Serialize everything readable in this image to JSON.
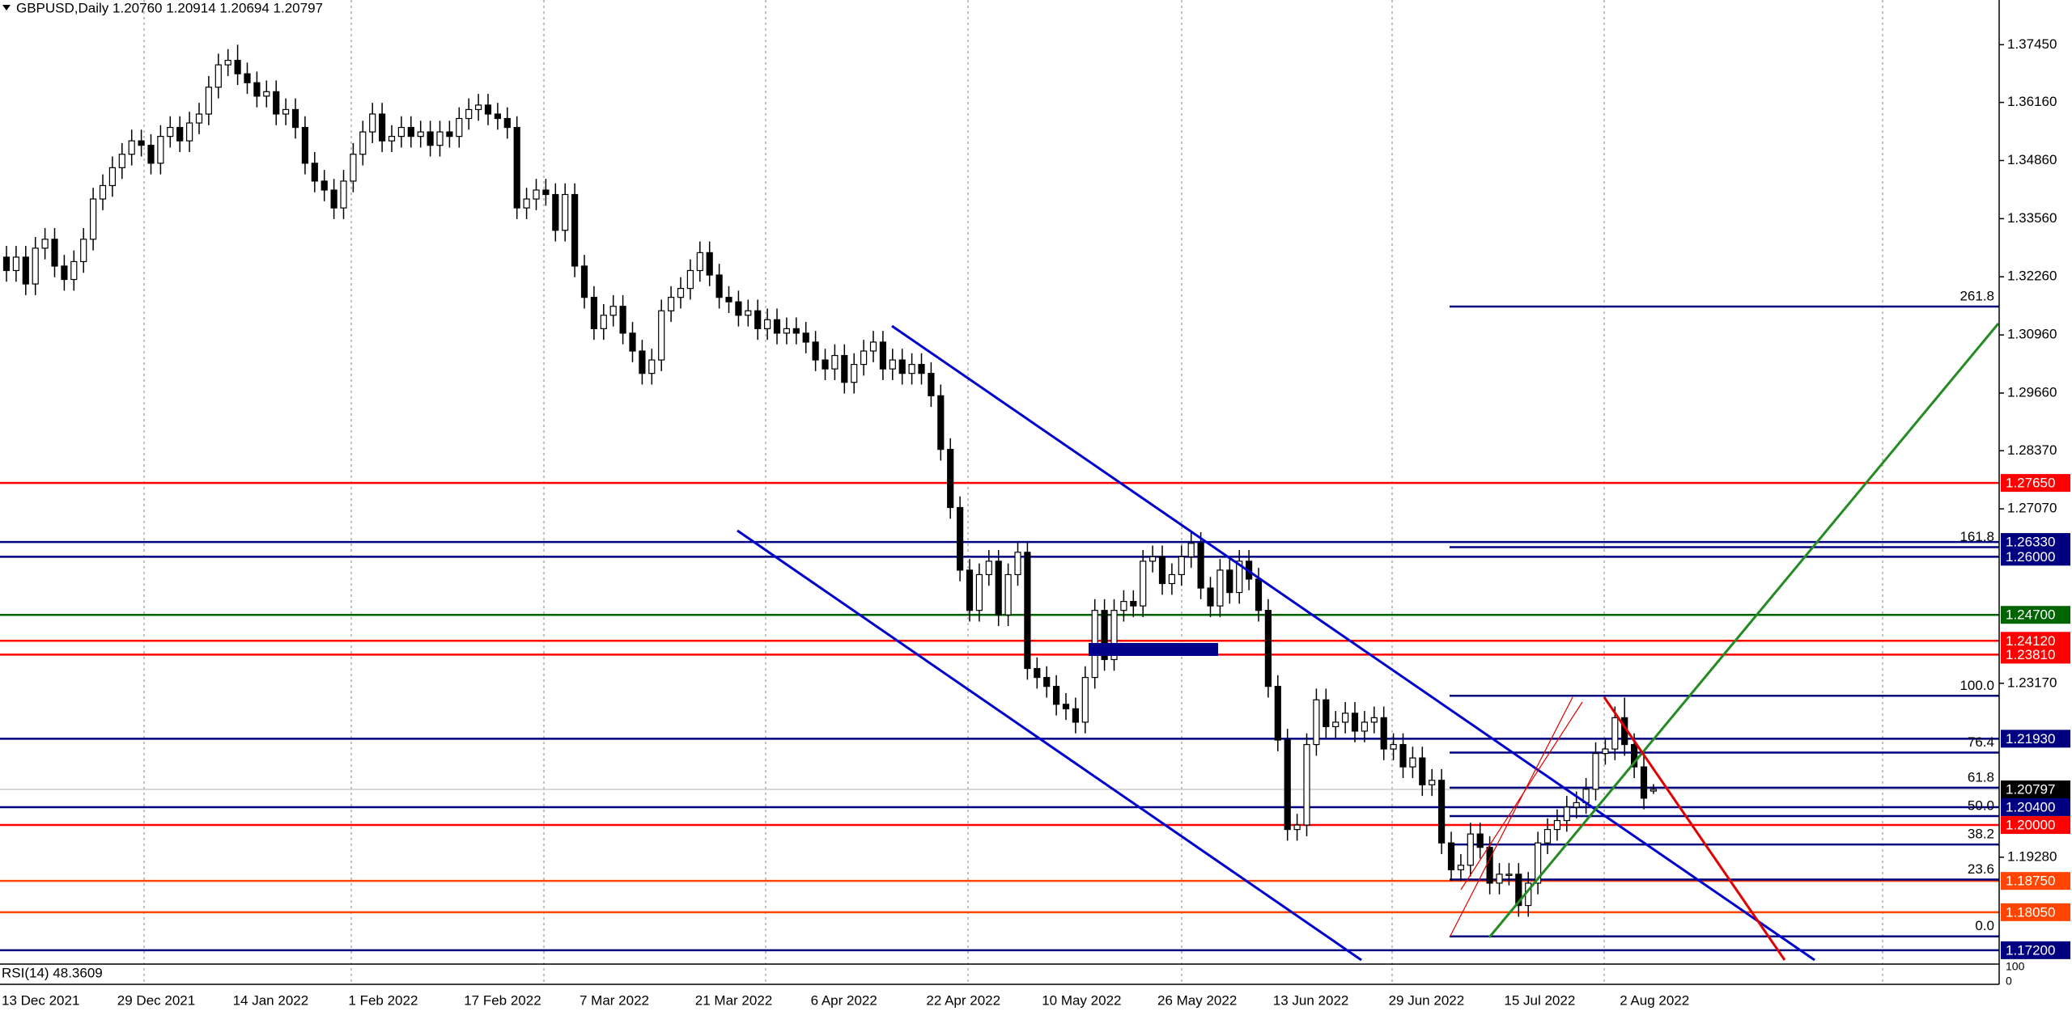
{
  "chart_data": {
    "type": "candlestick",
    "title": "GBPUSD,Daily  1.20760 1.20914 1.20694 1.20797",
    "categories": [
      "13 Dec 2021",
      null,
      null,
      null,
      null,
      null,
      null,
      null,
      null,
      null,
      null,
      null,
      "29 Dec 2021",
      null,
      null,
      null,
      null,
      null,
      null,
      null,
      null,
      null,
      null,
      null,
      "14 Jan 2022",
      null,
      null,
      null,
      null,
      null,
      null,
      null,
      null,
      null,
      null,
      null,
      "1 Feb 2022",
      null,
      null,
      null,
      null,
      null,
      null,
      null,
      null,
      null,
      null,
      null,
      "17 Feb 2022",
      null,
      null,
      null,
      null,
      null,
      null,
      null,
      null,
      null,
      null,
      null,
      "7 Mar 2022",
      null,
      null,
      null,
      null,
      null,
      null,
      null,
      null,
      null,
      null,
      null,
      "21 Mar 2022",
      null,
      null,
      null,
      null,
      null,
      null,
      null,
      null,
      null,
      null,
      null,
      "6 Apr 2022",
      null,
      null,
      null,
      null,
      null,
      null,
      null,
      null,
      null,
      null,
      null,
      "22 Apr 2022",
      null,
      null,
      null,
      null,
      null,
      null,
      null,
      null,
      null,
      null,
      null,
      "10 May 2022",
      null,
      null,
      null,
      null,
      null,
      null,
      null,
      null,
      null,
      null,
      null,
      "26 May 2022",
      null,
      null,
      null,
      null,
      null,
      null,
      null,
      null,
      null,
      null,
      null,
      "13 Jun 2022",
      null,
      null,
      null,
      null,
      null,
      null,
      null,
      null,
      null,
      null,
      null,
      "29 Jun 2022",
      null,
      null,
      null,
      null,
      null,
      null,
      null,
      null,
      null,
      null,
      null,
      "15 Jul 2022",
      null,
      null,
      null,
      null,
      null,
      null,
      null,
      null,
      null,
      null,
      null,
      "2 Aug 2022",
      null,
      null,
      null
    ],
    "open": [
      1.327,
      1.324,
      1.327,
      1.321,
      1.329,
      1.331,
      1.325,
      1.322,
      1.326,
      1.331,
      1.34,
      1.343,
      1.347,
      1.35,
      1.353,
      1.352,
      1.348,
      1.354,
      1.356,
      1.353,
      1.357,
      1.359,
      1.365,
      1.37,
      1.371,
      1.368,
      1.366,
      1.363,
      1.364,
      1.359,
      1.36,
      1.356,
      1.348,
      1.344,
      1.342,
      1.338,
      1.344,
      1.35,
      1.355,
      1.359,
      1.353,
      1.354,
      1.356,
      1.354,
      1.355,
      1.352,
      1.355,
      1.354,
      1.358,
      1.36,
      1.361,
      1.359,
      1.358,
      1.356,
      1.338,
      1.34,
      1.342,
      1.341,
      1.333,
      1.341,
      1.325,
      1.318,
      1.311,
      1.314,
      1.316,
      1.31,
      1.306,
      1.301,
      1.304,
      1.315,
      1.318,
      1.32,
      1.324,
      1.328,
      1.323,
      1.318,
      1.317,
      1.314,
      1.315,
      1.311,
      1.313,
      1.31,
      1.311,
      1.31,
      1.308,
      1.304,
      1.302,
      1.305,
      1.299,
      1.303,
      1.306,
      1.308,
      1.302,
      1.304,
      1.301,
      1.303,
      1.301,
      1.296,
      1.284,
      1.271,
      1.257,
      1.248,
      1.256,
      1.259,
      1.247,
      1.256,
      1.261,
      1.235,
      1.233,
      1.231,
      1.227,
      1.226,
      1.223,
      1.233,
      1.248,
      1.237,
      1.248,
      1.25,
      1.249,
      1.259,
      1.26,
      1.254,
      1.256,
      1.26,
      1.263,
      1.253,
      1.249,
      1.257,
      1.252,
      1.259,
      1.255,
      1.248,
      1.231,
      1.219,
      1.199,
      1.2,
      1.218,
      1.228,
      1.222,
      1.223,
      1.225,
      1.221,
      1.223,
      1.224,
      1.217,
      1.218,
      1.213,
      1.215,
      1.209,
      1.21,
      1.196,
      1.19,
      1.191,
      1.198,
      1.195,
      1.187,
      1.189,
      1.189,
      1.182,
      1.187,
      1.196,
      1.199,
      1.201,
      1.204,
      1.205,
      1.208,
      1.216,
      1.217,
      1.224,
      1.218,
      1.213,
      1.2076
    ],
    "high": [
      1.3295,
      1.3295,
      1.3295,
      1.3315,
      1.3335,
      1.3335,
      1.3275,
      1.3285,
      1.3335,
      1.3425,
      1.3455,
      1.3495,
      1.3525,
      1.3555,
      1.3555,
      1.3545,
      1.3565,
      1.3585,
      1.3585,
      1.3595,
      1.3615,
      1.3675,
      1.3725,
      1.3735,
      1.3745,
      1.3705,
      1.3685,
      1.3665,
      1.3665,
      1.3625,
      1.3625,
      1.3585,
      1.3505,
      1.3465,
      1.3445,
      1.3465,
      1.3525,
      1.3575,
      1.3615,
      1.3615,
      1.3565,
      1.3585,
      1.3585,
      1.3575,
      1.3575,
      1.3575,
      1.3575,
      1.3605,
      1.3625,
      1.3635,
      1.3635,
      1.3615,
      1.3605,
      1.3585,
      1.3425,
      1.3445,
      1.3445,
      1.3435,
      1.3435,
      1.3435,
      1.3275,
      1.3205,
      1.3165,
      1.3185,
      1.3185,
      1.3125,
      1.3085,
      1.3065,
      1.3175,
      1.3205,
      1.3225,
      1.3265,
      1.3305,
      1.3305,
      1.3255,
      1.3205,
      1.3195,
      1.3175,
      1.3175,
      1.3155,
      1.3155,
      1.3135,
      1.3135,
      1.3125,
      1.3105,
      1.3065,
      1.3075,
      1.3075,
      1.3055,
      1.3085,
      1.3105,
      1.3105,
      1.3065,
      1.3065,
      1.3055,
      1.3055,
      1.3035,
      1.2985,
      1.2865,
      1.2735,
      1.2595,
      1.2585,
      1.2615,
      1.2615,
      1.2585,
      1.2635,
      1.2635,
      1.2375,
      1.2355,
      1.2335,
      1.2295,
      1.2285,
      1.2355,
      1.2505,
      1.2505,
      1.2505,
      1.2525,
      1.2525,
      1.2615,
      1.2625,
      1.2625,
      1.2585,
      1.2625,
      1.2655,
      1.2655,
      1.2555,
      1.2595,
      1.2595,
      1.2615,
      1.2615,
      1.2575,
      1.2505,
      1.2335,
      1.2215,
      1.2025,
      1.2205,
      1.2305,
      1.2305,
      1.2255,
      1.2275,
      1.2275,
      1.2255,
      1.2265,
      1.2265,
      1.2205,
      1.2205,
      1.2175,
      1.2175,
      1.2125,
      1.2125,
      1.1985,
      1.1935,
      1.2005,
      1.2005,
      1.1975,
      1.1915,
      1.1915,
      1.1915,
      1.1895,
      1.1985,
      1.2015,
      1.2035,
      1.2065,
      1.2075,
      1.2105,
      1.2185,
      1.2195,
      1.2265,
      1.2285,
      1.2205,
      1.2155,
      1.20914
    ],
    "low": [
      1.3215,
      1.3215,
      1.3185,
      1.3185,
      1.3265,
      1.3225,
      1.3195,
      1.3195,
      1.3235,
      1.3285,
      1.3375,
      1.3405,
      1.3445,
      1.3475,
      1.3495,
      1.3455,
      1.3455,
      1.3515,
      1.3505,
      1.3505,
      1.3545,
      1.3565,
      1.3625,
      1.3675,
      1.3655,
      1.3635,
      1.3605,
      1.3605,
      1.3565,
      1.3565,
      1.3535,
      1.3455,
      1.3415,
      1.3395,
      1.3355,
      1.3355,
      1.3415,
      1.3475,
      1.3525,
      1.3505,
      1.3505,
      1.3515,
      1.3515,
      1.3515,
      1.3495,
      1.3495,
      1.3515,
      1.3515,
      1.3555,
      1.3575,
      1.3565,
      1.3555,
      1.3535,
      1.3355,
      1.3355,
      1.3375,
      1.3385,
      1.3305,
      1.3305,
      1.3225,
      1.3155,
      1.3085,
      1.3085,
      1.3115,
      1.3075,
      1.3035,
      1.2985,
      1.2985,
      1.3015,
      1.3125,
      1.3155,
      1.3175,
      1.3215,
      1.3205,
      1.3155,
      1.3145,
      1.3115,
      1.3115,
      1.3085,
      1.3085,
      1.3075,
      1.3075,
      1.3075,
      1.3055,
      1.3015,
      1.2995,
      1.2995,
      1.2965,
      1.2965,
      1.3005,
      1.3035,
      1.2995,
      1.2995,
      1.2985,
      1.2985,
      1.2985,
      1.2935,
      1.2815,
      1.2685,
      1.2545,
      1.2455,
      1.2455,
      1.2535,
      1.2445,
      1.2445,
      1.2535,
      1.2325,
      1.2305,
      1.2285,
      1.2245,
      1.2235,
      1.2205,
      1.2205,
      1.2305,
      1.2345,
      1.2345,
      1.2455,
      1.2465,
      1.2465,
      1.2565,
      1.2515,
      1.2515,
      1.2535,
      1.2575,
      1.2505,
      1.2465,
      1.2465,
      1.2495,
      1.2495,
      1.2525,
      1.2455,
      1.2285,
      1.2165,
      1.1965,
      1.1965,
      1.1975,
      1.2155,
      1.2195,
      1.2195,
      1.2205,
      1.2185,
      1.2185,
      1.2205,
      1.2145,
      1.2145,
      1.2105,
      1.2105,
      1.2065,
      1.2065,
      1.1935,
      1.1875,
      1.1875,
      1.1885,
      1.1925,
      1.1845,
      1.1845,
      1.1865,
      1.1795,
      1.1795,
      1.1845,
      1.1935,
      1.1965,
      1.1985,
      1.2015,
      1.2025,
      1.2055,
      1.2135,
      1.2145,
      1.2155,
      1.2105,
      1.2035,
      1.20694
    ],
    "close": [
      1.324,
      1.327,
      1.321,
      1.329,
      1.331,
      1.325,
      1.322,
      1.326,
      1.331,
      1.34,
      1.343,
      1.347,
      1.35,
      1.353,
      1.352,
      1.348,
      1.354,
      1.356,
      1.353,
      1.357,
      1.359,
      1.365,
      1.37,
      1.371,
      1.368,
      1.366,
      1.363,
      1.364,
      1.359,
      1.36,
      1.356,
      1.348,
      1.344,
      1.342,
      1.338,
      1.344,
      1.35,
      1.355,
      1.359,
      1.353,
      1.354,
      1.356,
      1.354,
      1.355,
      1.352,
      1.355,
      1.354,
      1.358,
      1.36,
      1.361,
      1.359,
      1.358,
      1.356,
      1.338,
      1.34,
      1.342,
      1.341,
      1.333,
      1.341,
      1.325,
      1.318,
      1.311,
      1.314,
      1.316,
      1.31,
      1.306,
      1.301,
      1.304,
      1.315,
      1.318,
      1.32,
      1.324,
      1.328,
      1.323,
      1.318,
      1.317,
      1.314,
      1.315,
      1.311,
      1.313,
      1.31,
      1.311,
      1.31,
      1.308,
      1.304,
      1.302,
      1.305,
      1.299,
      1.303,
      1.306,
      1.308,
      1.302,
      1.304,
      1.301,
      1.303,
      1.301,
      1.296,
      1.284,
      1.271,
      1.257,
      1.248,
      1.256,
      1.259,
      1.247,
      1.256,
      1.261,
      1.235,
      1.233,
      1.231,
      1.227,
      1.226,
      1.223,
      1.233,
      1.248,
      1.237,
      1.248,
      1.25,
      1.249,
      1.259,
      1.26,
      1.254,
      1.256,
      1.26,
      1.263,
      1.253,
      1.249,
      1.257,
      1.252,
      1.259,
      1.255,
      1.248,
      1.231,
      1.219,
      1.199,
      1.2,
      1.218,
      1.228,
      1.222,
      1.223,
      1.225,
      1.221,
      1.223,
      1.224,
      1.217,
      1.218,
      1.213,
      1.215,
      1.209,
      1.21,
      1.196,
      1.19,
      1.191,
      1.198,
      1.195,
      1.187,
      1.189,
      1.189,
      1.182,
      1.187,
      1.196,
      1.199,
      1.201,
      1.204,
      1.205,
      1.208,
      1.216,
      1.217,
      1.224,
      1.218,
      1.213,
      1.206,
      1.20797
    ],
    "up_color": "#ffffff",
    "down_color": "#000000",
    "ylim": [
      1.1689,
      1.3845
    ],
    "yticks": [
      {
        "value": 1.3745,
        "label": "1.37450"
      },
      {
        "value": 1.3616,
        "label": "1.36160"
      },
      {
        "value": 1.3486,
        "label": "1.34860"
      },
      {
        "value": 1.3356,
        "label": "1.33560"
      },
      {
        "value": 1.3226,
        "label": "1.32260"
      },
      {
        "value": 1.3096,
        "label": "1.30960"
      },
      {
        "value": 1.2966,
        "label": "1.29660"
      },
      {
        "value": 1.2837,
        "label": "1.28370"
      },
      {
        "value": 1.2707,
        "label": "1.27070"
      },
      {
        "value": 1.2317,
        "label": "1.23170"
      },
      {
        "value": 1.1928,
        "label": "1.19280"
      }
    ],
    "levels": [
      {
        "value": 1.2765,
        "label": "1.27650",
        "color": "#ff0000"
      },
      {
        "value": 1.2633,
        "label": "1.26330",
        "color": "#000080"
      },
      {
        "value": 1.26,
        "label": "1.26000",
        "color": "#000080"
      },
      {
        "value": 1.247,
        "label": "1.24700",
        "color": "#006400"
      },
      {
        "value": 1.2412,
        "label": "1.24120",
        "color": "#ff0000"
      },
      {
        "value": 1.2381,
        "label": "1.23810",
        "color": "#ff0000"
      },
      {
        "value": 1.2193,
        "label": "1.21930",
        "color": "#000080"
      },
      {
        "value": 1.204,
        "label": "1.20400",
        "color": "#000080"
      },
      {
        "value": 1.2,
        "label": "1.20000",
        "color": "#ff0000"
      },
      {
        "value": 1.1875,
        "label": "1.18750",
        "color": "#ff4500"
      },
      {
        "value": 1.1805,
        "label": "1.18050",
        "color": "#ff4500"
      },
      {
        "value": 1.172,
        "label": "1.17200",
        "color": "#000080"
      }
    ],
    "fibonacci": {
      "low": 1.1751,
      "high": 1.2289,
      "color": "#000080",
      "levels": [
        261.8,
        161.8,
        {
          "value": 100,
          "label": "100.0"
        },
        76.4,
        61.8,
        {
          "value": 50,
          "label": "50.0"
        },
        38.2,
        23.6,
        {
          "value": 0,
          "label": "0.0"
        }
      ]
    },
    "rsi": {
      "label": "RSI(14) 48.3609",
      "ylim": [
        0,
        100
      ],
      "yticks": [
        100,
        0
      ]
    }
  }
}
